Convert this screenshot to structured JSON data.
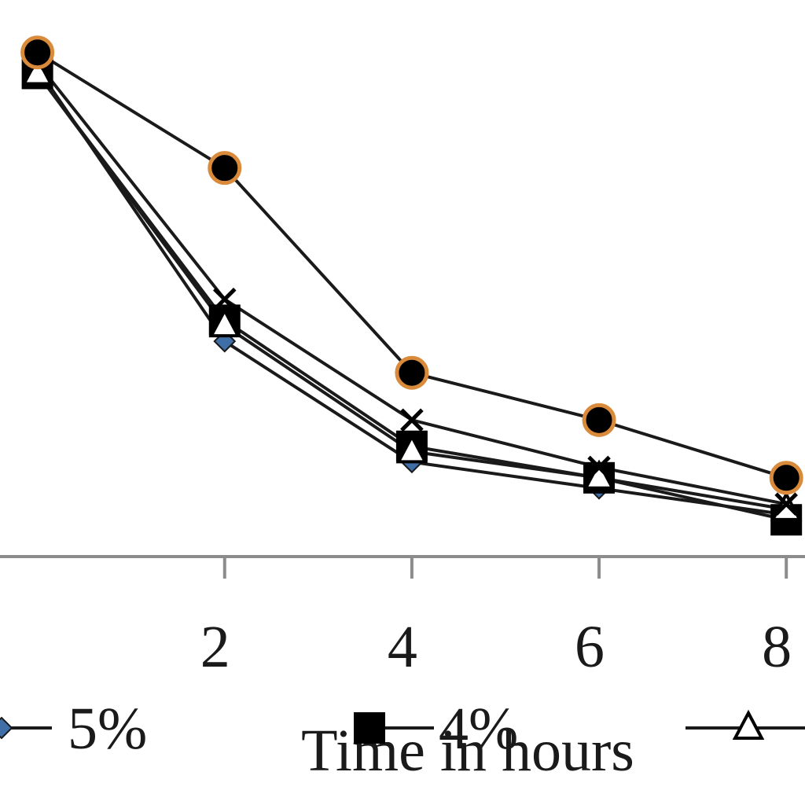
{
  "chart_data": {
    "type": "line",
    "title": "",
    "xlabel": "Time in hours",
    "ylabel": "",
    "x": [
      0,
      2,
      4,
      6,
      8
    ],
    "x_visible_range": [
      -0.4,
      8.2
    ],
    "x_ticks": [
      2,
      4,
      6,
      8
    ],
    "x_tick_labels": [
      "2",
      "4",
      "6",
      "8"
    ],
    "ylim": [
      0,
      1
    ],
    "grid": false,
    "legend_position": "bottom",
    "series": [
      {
        "name": "5%",
        "marker": "diamond",
        "color": "#1a1a1a",
        "marker_color": "#3f6fa6",
        "values": [
          0.93,
          0.41,
          0.18,
          0.13,
          0.08
        ]
      },
      {
        "name": "4%",
        "marker": "square",
        "color": "#1a1a1a",
        "marker_color": "#000000",
        "values": [
          0.92,
          0.45,
          0.21,
          0.15,
          0.07
        ]
      },
      {
        "name": "",
        "marker": "triangle-open",
        "color": "#1a1a1a",
        "marker_color": "#ffffff",
        "values": [
          0.92,
          0.44,
          0.2,
          0.15,
          0.09
        ]
      },
      {
        "name": "",
        "marker": "x",
        "color": "#1a1a1a",
        "marker_color": "#000000",
        "values": [
          0.94,
          0.49,
          0.26,
          0.17,
          0.1
        ]
      },
      {
        "name": "",
        "marker": "circle",
        "color": "#1a1a1a",
        "marker_color": "#000000",
        "marker_edge": "#d98a3a",
        "values": [
          0.96,
          0.74,
          0.35,
          0.26,
          0.15
        ]
      }
    ]
  }
}
